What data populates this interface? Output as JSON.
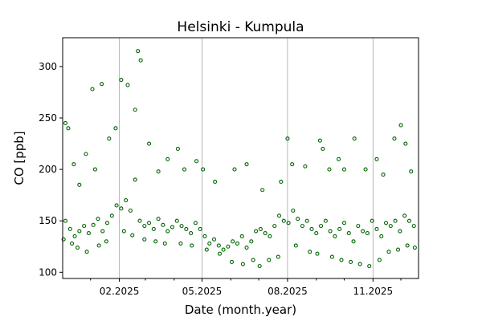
{
  "chart_data": {
    "type": "scatter",
    "title": "Helsinki - Kumpula",
    "xlabel": "Date (month.year)",
    "ylabel": "CO [ppb]",
    "x_type": "date",
    "xlim": [
      "2024-12-02",
      "2025-12-20"
    ],
    "ylim": [
      94,
      328
    ],
    "x_ticks": [
      {
        "date": "2025-02-01",
        "label": "02.2025"
      },
      {
        "date": "2025-05-01",
        "label": "05.2025"
      },
      {
        "date": "2025-08-01",
        "label": "08.2025"
      },
      {
        "date": "2025-11-01",
        "label": "11.2025"
      }
    ],
    "x_minor_ticks": [
      "2024-12-01",
      "2025-01-01",
      "2025-03-01",
      "2025-04-01",
      "2025-06-01",
      "2025-07-01",
      "2025-09-01",
      "2025-10-01",
      "2025-12-01"
    ],
    "y_ticks": [
      100,
      150,
      200,
      250,
      300
    ],
    "grid": "x-major",
    "marker": "hollow-circle",
    "series": [
      {
        "color": "#006400",
        "x": [
          "2024-12-05",
          "2024-12-10",
          "2024-12-15",
          "2024-12-20",
          "2024-12-25",
          "2024-12-30",
          "2025-01-04",
          "2025-01-09",
          "2025-01-14",
          "2025-01-19",
          "2025-01-24",
          "2025-01-29",
          "2025-02-03",
          "2025-02-08",
          "2025-02-13",
          "2025-02-18",
          "2025-02-23",
          "2025-02-28",
          "2025-03-05",
          "2025-03-10",
          "2025-03-15",
          "2025-03-20",
          "2025-03-25",
          "2025-03-30",
          "2025-04-04",
          "2025-04-09",
          "2025-04-14",
          "2025-04-19",
          "2025-04-24",
          "2025-04-29",
          "2025-05-04",
          "2025-05-09",
          "2025-05-14",
          "2025-05-19",
          "2025-05-24",
          "2025-05-29",
          "2025-06-03",
          "2025-06-08",
          "2025-06-13",
          "2025-06-18",
          "2025-06-23",
          "2025-06-28",
          "2025-07-03",
          "2025-07-08",
          "2025-07-13",
          "2025-07-18",
          "2025-07-23",
          "2025-07-28",
          "2025-08-02",
          "2025-08-07",
          "2025-08-12",
          "2025-08-17",
          "2025-08-22",
          "2025-08-27",
          "2025-09-01",
          "2025-09-06",
          "2025-09-11",
          "2025-09-16",
          "2025-09-21",
          "2025-09-26",
          "2025-10-01",
          "2025-10-06",
          "2025-10-11",
          "2025-10-16",
          "2025-10-21",
          "2025-10-26",
          "2025-10-31",
          "2025-11-05",
          "2025-11-10",
          "2025-11-15",
          "2025-11-20",
          "2025-11-25",
          "2025-11-30",
          "2025-12-05",
          "2025-12-10",
          "2025-12-15"
        ],
        "y": [
          150,
          142,
          135,
          140,
          145,
          138,
          146,
          152,
          140,
          148,
          155,
          165,
          162,
          170,
          160,
          190,
          150,
          145,
          148,
          142,
          152,
          146,
          140,
          144,
          150,
          145,
          142,
          138,
          148,
          142,
          135,
          128,
          132,
          126,
          122,
          125,
          130,
          128,
          135,
          124,
          130,
          140,
          142,
          138,
          135,
          145,
          155,
          150,
          148,
          160,
          152,
          145,
          150,
          142,
          138,
          145,
          150,
          140,
          135,
          142,
          148,
          138,
          130,
          145,
          140,
          138,
          150,
          142,
          135,
          148,
          145,
          150,
          140,
          155,
          150,
          145
        ]
      },
      {
        "color": "#006400",
        "x": [
          "2024-12-05",
          "2024-12-08",
          "2024-12-14",
          "2024-12-20",
          "2024-12-27",
          "2025-01-03",
          "2025-01-06",
          "2025-01-13",
          "2025-01-21",
          "2025-01-28",
          "2025-02-03",
          "2025-02-10",
          "2025-02-18",
          "2025-02-21",
          "2025-02-24",
          "2025-03-05",
          "2025-03-15",
          "2025-03-25",
          "2025-04-05",
          "2025-04-12",
          "2025-04-25",
          "2025-05-02",
          "2025-05-15",
          "2025-06-05",
          "2025-06-18",
          "2025-07-05",
          "2025-07-25",
          "2025-08-01",
          "2025-08-06",
          "2025-08-20",
          "2025-09-05",
          "2025-09-08",
          "2025-09-15",
          "2025-09-25",
          "2025-10-01",
          "2025-10-12",
          "2025-10-24",
          "2025-11-05",
          "2025-11-12",
          "2025-11-24",
          "2025-12-01",
          "2025-12-06",
          "2025-12-12"
        ],
        "y": [
          245,
          240,
          205,
          185,
          215,
          278,
          200,
          283,
          230,
          240,
          287,
          282,
          258,
          315,
          306,
          225,
          198,
          210,
          220,
          200,
          208,
          200,
          188,
          200,
          205,
          180,
          188,
          230,
          205,
          203,
          228,
          220,
          200,
          210,
          200,
          230,
          200,
          210,
          195,
          230,
          243,
          225,
          198
        ]
      },
      {
        "color": "#006400",
        "x": [
          "2024-12-03",
          "2024-12-12",
          "2024-12-18",
          "2024-12-28",
          "2025-01-10",
          "2025-01-18",
          "2025-02-06",
          "2025-02-15",
          "2025-02-28",
          "2025-03-12",
          "2025-03-22",
          "2025-04-08",
          "2025-04-20",
          "2025-05-06",
          "2025-05-20",
          "2025-06-02",
          "2025-06-14",
          "2025-06-25",
          "2025-07-02",
          "2025-07-12",
          "2025-07-22",
          "2025-08-10",
          "2025-08-25",
          "2025-09-02",
          "2025-09-18",
          "2025-09-28",
          "2025-10-08",
          "2025-10-18",
          "2025-10-28",
          "2025-11-08",
          "2025-11-18",
          "2025-11-28",
          "2025-12-08",
          "2025-12-16"
        ],
        "y": [
          132,
          128,
          124,
          120,
          126,
          130,
          140,
          136,
          132,
          130,
          128,
          128,
          126,
          122,
          118,
          110,
          108,
          112,
          106,
          112,
          115,
          126,
          120,
          118,
          115,
          112,
          110,
          108,
          106,
          112,
          120,
          122,
          126,
          124
        ]
      }
    ]
  }
}
